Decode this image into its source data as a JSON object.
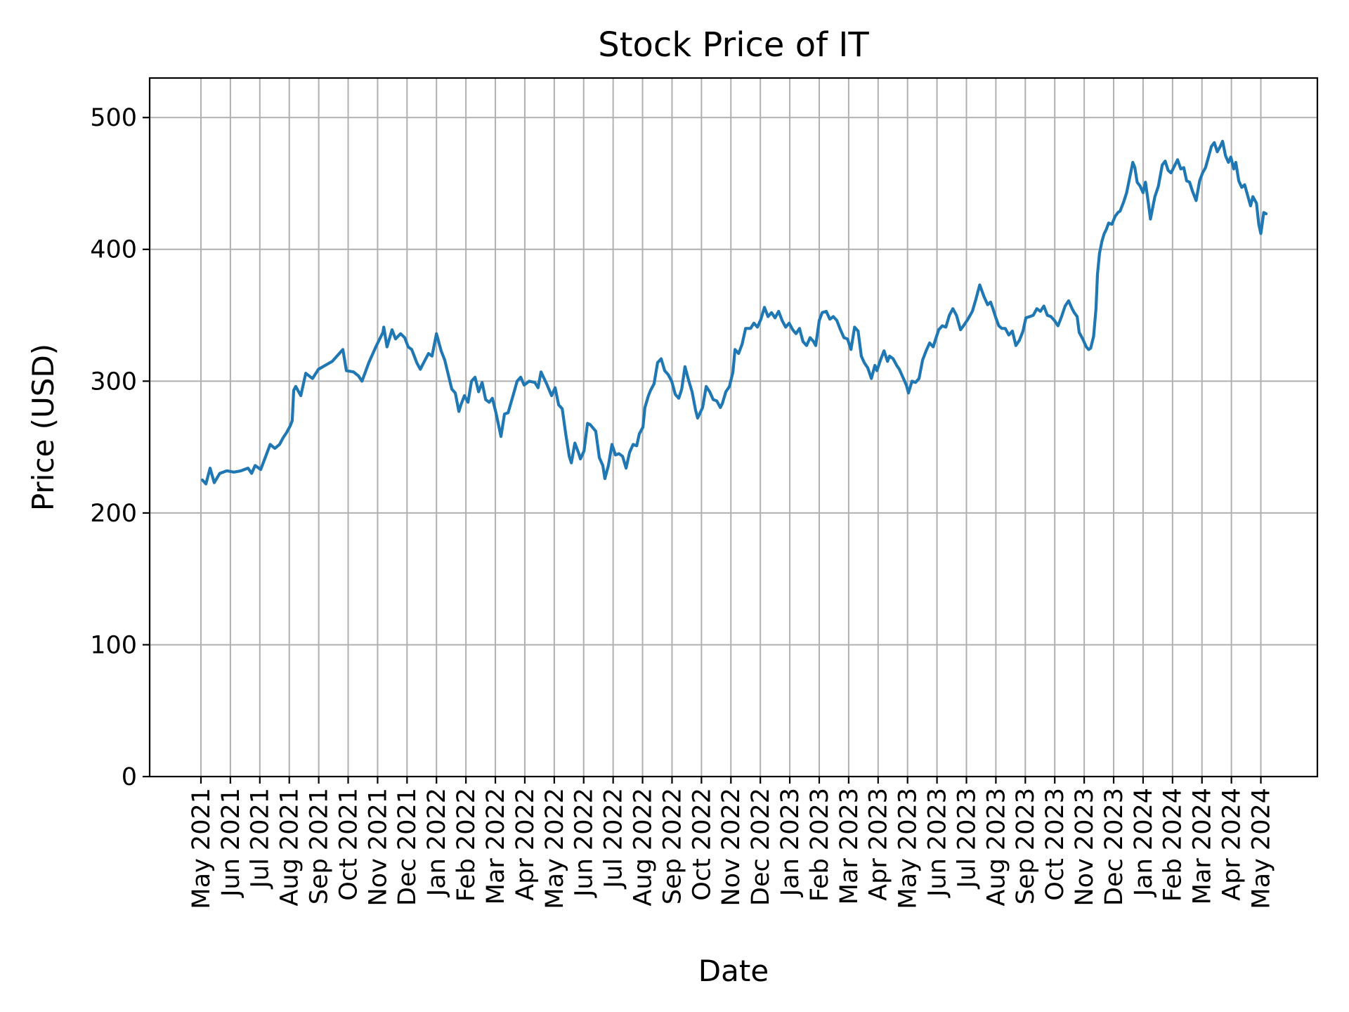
{
  "chart_data": {
    "type": "line",
    "title": "Stock Price of IT",
    "xlabel": "Date",
    "ylabel": "Price (USD)",
    "x_tick_labels": [
      "May 2021",
      "Jun 2021",
      "Jul 2021",
      "Aug 2021",
      "Sep 2021",
      "Oct 2021",
      "Nov 2021",
      "Dec 2021",
      "Jan 2022",
      "Feb 2022",
      "Mar 2022",
      "Apr 2022",
      "May 2022",
      "Jun 2022",
      "Jul 2022",
      "Aug 2022",
      "Sep 2022",
      "Oct 2022",
      "Nov 2022",
      "Dec 2022",
      "Jan 2023",
      "Feb 2023",
      "Mar 2023",
      "Apr 2023",
      "May 2023",
      "Jun 2023",
      "Jul 2023",
      "Aug 2023",
      "Sep 2023",
      "Oct 2023",
      "Nov 2023",
      "Dec 2023",
      "Jan 2024",
      "Feb 2024",
      "Mar 2024",
      "Apr 2024",
      "May 2024"
    ],
    "y_ticks": [
      0,
      100,
      200,
      300,
      400,
      500
    ],
    "ylim": [
      0,
      530
    ],
    "xlim_months": [
      -1.742,
      37.92
    ],
    "grid": true,
    "legend_position": "none",
    "line_color": "#1f77b4",
    "grid_color": "#b0b0b0",
    "axis_color": "#000000",
    "series": [
      {
        "name": "IT",
        "x_months_since_first_tick": [
          0.05,
          0.17,
          0.31,
          0.45,
          0.64,
          0.88,
          1.12,
          1.36,
          1.6,
          1.72,
          1.84,
          2.03,
          2.2,
          2.35,
          2.51,
          2.67,
          2.79,
          2.91,
          3.03,
          3.1,
          3.15,
          3.22,
          3.39,
          3.56,
          3.79,
          3.99,
          4.22,
          4.46,
          4.82,
          4.94,
          5.18,
          5.35,
          5.47,
          5.7,
          5.94,
          6.18,
          6.21,
          6.32,
          6.49,
          6.61,
          6.78,
          6.92,
          7.04,
          7.16,
          7.33,
          7.45,
          7.61,
          7.73,
          7.85,
          8.0,
          8.16,
          8.28,
          8.4,
          8.52,
          8.64,
          8.76,
          8.83,
          8.95,
          9.07,
          9.19,
          9.31,
          9.43,
          9.55,
          9.67,
          9.79,
          9.9,
          10.02,
          10.19,
          10.31,
          10.43,
          10.6,
          10.74,
          10.86,
          10.98,
          11.15,
          11.34,
          11.45,
          11.55,
          11.74,
          11.91,
          12.03,
          12.15,
          12.27,
          12.39,
          12.51,
          12.58,
          12.7,
          12.82,
          12.89,
          13.01,
          13.13,
          13.22,
          13.41,
          13.53,
          13.65,
          13.72,
          13.84,
          13.96,
          14.08,
          14.2,
          14.32,
          14.44,
          14.56,
          14.68,
          14.8,
          14.89,
          15.01,
          15.08,
          15.2,
          15.27,
          15.39,
          15.51,
          15.63,
          15.75,
          15.87,
          15.99,
          16.11,
          16.23,
          16.33,
          16.44,
          16.56,
          16.68,
          16.8,
          16.87,
          17.04,
          17.16,
          17.28,
          17.4,
          17.52,
          17.64,
          17.71,
          17.83,
          17.95,
          18.07,
          18.14,
          18.26,
          18.38,
          18.5,
          18.67,
          18.78,
          18.9,
          19.02,
          19.14,
          19.26,
          19.38,
          19.5,
          19.62,
          19.74,
          19.86,
          19.98,
          20.1,
          20.21,
          20.33,
          20.45,
          20.57,
          20.69,
          20.81,
          20.88,
          21.0,
          21.1,
          21.24,
          21.36,
          21.48,
          21.6,
          21.72,
          21.84,
          21.96,
          22.08,
          22.2,
          22.32,
          22.43,
          22.53,
          22.65,
          22.77,
          22.89,
          22.96,
          23.08,
          23.2,
          23.32,
          23.39,
          23.51,
          23.63,
          23.72,
          23.84,
          23.96,
          24.03,
          24.15,
          24.27,
          24.39,
          24.51,
          24.63,
          24.75,
          24.87,
          24.94,
          25.06,
          25.18,
          25.3,
          25.42,
          25.54,
          25.66,
          25.8,
          25.9,
          26.05,
          26.2,
          26.32,
          26.45,
          26.6,
          26.72,
          26.82,
          26.9,
          27.0,
          27.1,
          27.2,
          27.32,
          27.44,
          27.56,
          27.68,
          27.8,
          27.92,
          28.02,
          28.15,
          28.27,
          28.39,
          28.51,
          28.63,
          28.75,
          28.87,
          28.99,
          29.11,
          29.23,
          29.35,
          29.47,
          29.59,
          29.66,
          29.76,
          29.83,
          29.95,
          30.07,
          30.15,
          30.22,
          30.32,
          30.4,
          30.45,
          30.52,
          30.6,
          30.68,
          30.75,
          30.83,
          30.94,
          31.05,
          31.15,
          31.22,
          31.34,
          31.44,
          31.55,
          31.65,
          31.72,
          31.8,
          31.9,
          32.0,
          32.08,
          32.18,
          32.25,
          32.4,
          32.52,
          32.65,
          32.75,
          32.85,
          32.95,
          33.17,
          33.28,
          33.38,
          33.48,
          33.58,
          33.68,
          33.8,
          33.92,
          34.02,
          34.12,
          34.22,
          34.32,
          34.42,
          34.52,
          34.62,
          34.7,
          34.8,
          34.9,
          34.98,
          35.08,
          35.15,
          35.25,
          35.35,
          35.45,
          35.55,
          35.65,
          35.73,
          35.85,
          35.93,
          36.0,
          36.1,
          36.18
        ],
        "prices": [
          225,
          222,
          234,
          223,
          230,
          232,
          231,
          232,
          234,
          230,
          236,
          233,
          243,
          252,
          249,
          252,
          257,
          261,
          266,
          270,
          293,
          296,
          289,
          306,
          302,
          309,
          312,
          315,
          324,
          308,
          307,
          304,
          300,
          314,
          326,
          337,
          341,
          326,
          339,
          332,
          336,
          333,
          326,
          324,
          314,
          309,
          316,
          321,
          319,
          336,
          323,
          316,
          305,
          294,
          291,
          277,
          282,
          289,
          284,
          300,
          303,
          292,
          299,
          286,
          284,
          287,
          276,
          258,
          275,
          276,
          289,
          300,
          303,
          297,
          300,
          299,
          295,
          307,
          298,
          289,
          295,
          282,
          279,
          260,
          243,
          238,
          253,
          246,
          241,
          247,
          268,
          267,
          262,
          242,
          236,
          226,
          236,
          252,
          244,
          245,
          243,
          234,
          246,
          252,
          251,
          260,
          265,
          280,
          289,
          293,
          298,
          314,
          317,
          308,
          305,
          300,
          290,
          287,
          294,
          311,
          301,
          292,
          278,
          272,
          280,
          296,
          292,
          286,
          285,
          280,
          283,
          292,
          296,
          307,
          324,
          321,
          328,
          340,
          340,
          344,
          341,
          347,
          356,
          349,
          352,
          348,
          353,
          346,
          341,
          344,
          339,
          336,
          340,
          330,
          327,
          333,
          330,
          327,
          346,
          352,
          353,
          347,
          349,
          346,
          339,
          333,
          332,
          324,
          341,
          338,
          319,
          314,
          310,
          302,
          312,
          308,
          316,
          323,
          315,
          319,
          317,
          312,
          309,
          303,
          297,
          291,
          300,
          299,
          302,
          316,
          323,
          329,
          326,
          331,
          339,
          342,
          341,
          350,
          355,
          350,
          339,
          342,
          347,
          353,
          362,
          373,
          364,
          358,
          360,
          355,
          348,
          342,
          340,
          340,
          335,
          338,
          327,
          331,
          338,
          348,
          349,
          350,
          355,
          353,
          357,
          350,
          349,
          346,
          342,
          349,
          357,
          361,
          355,
          352,
          349,
          337,
          332,
          326,
          324,
          325,
          334,
          355,
          381,
          397,
          406,
          412,
          415,
          420,
          419,
          425,
          428,
          429,
          436,
          443,
          455,
          466,
          462,
          451,
          448,
          443,
          451,
          435,
          423,
          440,
          448,
          464,
          467,
          460,
          458,
          468,
          461,
          462,
          452,
          451,
          444,
          437,
          452,
          458,
          462,
          470,
          478,
          481,
          474,
          478,
          482,
          471,
          466,
          470,
          461,
          466,
          452,
          447,
          449,
          441,
          433,
          440,
          435,
          419,
          412,
          428,
          427
        ]
      }
    ]
  }
}
